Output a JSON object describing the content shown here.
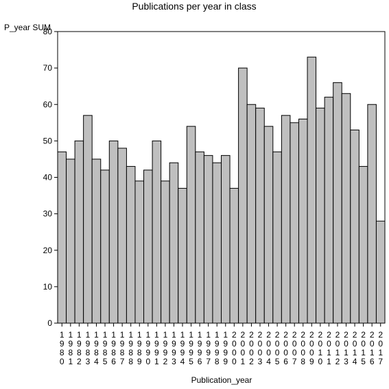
{
  "chart_data": {
    "type": "bar",
    "title": "Publications per year in class",
    "ylabel": "P_year SUM",
    "xlabel": "Publication_year",
    "ylim": [
      0,
      80
    ],
    "yticks": [
      0,
      10,
      20,
      30,
      40,
      50,
      60,
      70,
      80
    ],
    "categories": [
      "1980",
      "1981",
      "1982",
      "1983",
      "1984",
      "1985",
      "1986",
      "1987",
      "1988",
      "1989",
      "1990",
      "1991",
      "1992",
      "1993",
      "1994",
      "1995",
      "1996",
      "1997",
      "1998",
      "1999",
      "2000",
      "2001",
      "2002",
      "2003",
      "2004",
      "2005",
      "2006",
      "2007",
      "2008",
      "2009",
      "2010",
      "2011",
      "2012",
      "2013",
      "2014",
      "2015",
      "2016",
      "2017"
    ],
    "values": [
      47,
      45,
      50,
      57,
      45,
      42,
      50,
      48,
      43,
      39,
      42,
      50,
      39,
      44,
      37,
      54,
      47,
      46,
      44,
      46,
      37,
      70,
      60,
      59,
      54,
      47,
      57,
      55,
      56,
      73,
      59,
      62,
      66,
      63,
      53,
      43,
      60,
      28
    ],
    "bar_color": "#bfbfbf",
    "grid": false
  }
}
